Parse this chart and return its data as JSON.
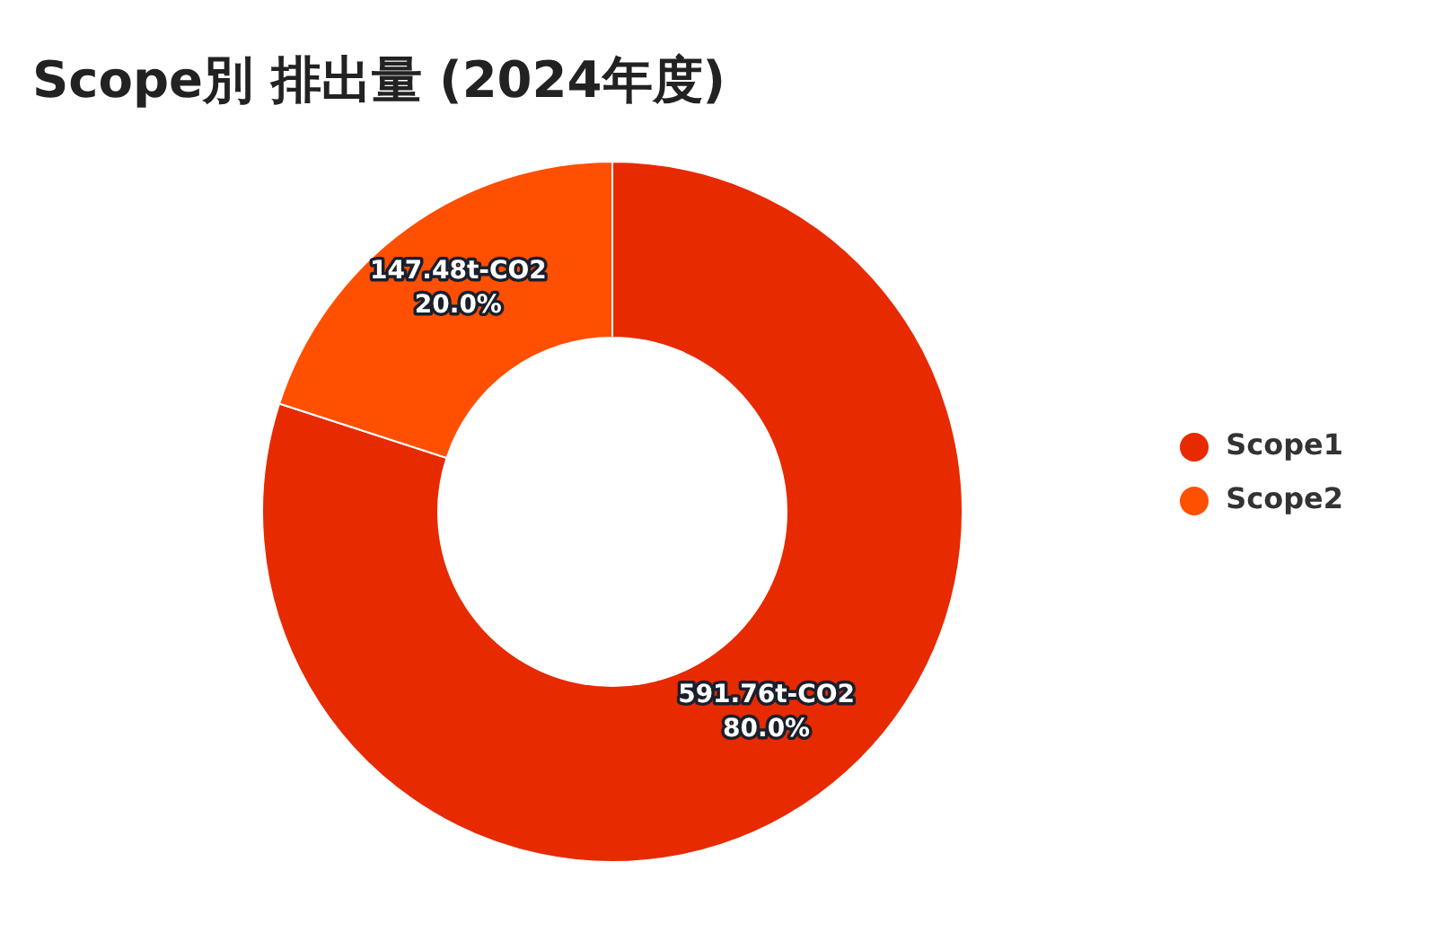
{
  "chart_data": {
    "type": "donut",
    "title": "Scope別 排出量 (2024年度)",
    "categories": [
      "Scope1",
      "Scope2"
    ],
    "values": [
      80.0,
      20.0
    ],
    "colors": [
      "#e82a00",
      "#ff4f00"
    ],
    "value_labels": [
      "591.76t-CO2\n80.0%",
      "147.48t-CO2\n20.0%"
    ],
    "legend": "right"
  }
}
